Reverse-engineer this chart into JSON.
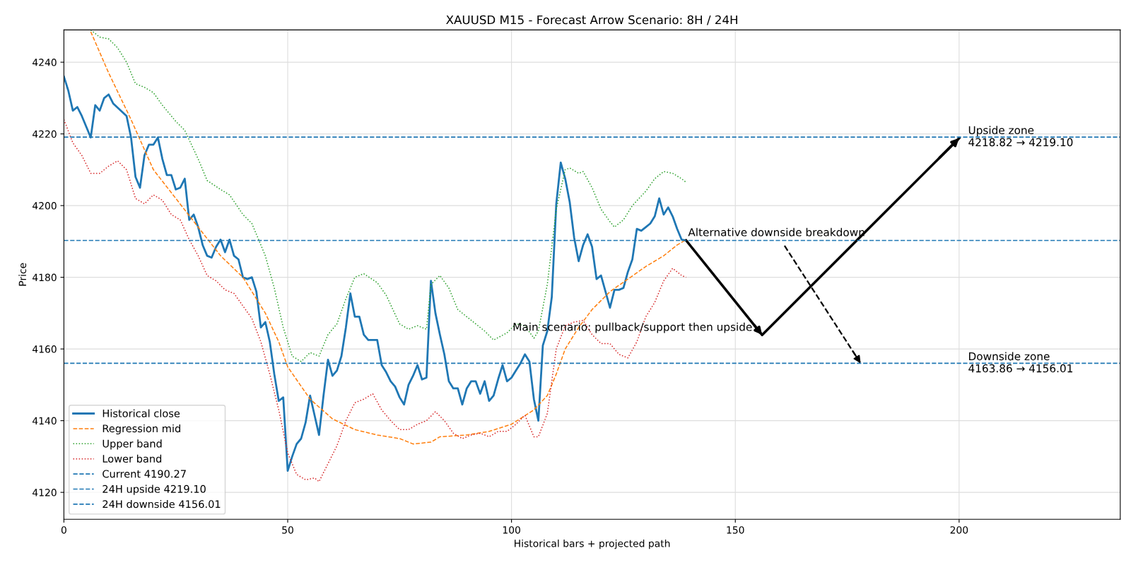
{
  "chart_data": {
    "type": "line",
    "title": "XAUUSD M15 - Forecast Arrow Scenario: 8H / 24H",
    "xlabel": "Historical bars + projected path",
    "ylabel": "Price",
    "xlim": [
      0,
      236
    ],
    "ylim": [
      4112.5,
      4249
    ],
    "xticks": [
      0,
      50,
      100,
      150,
      200
    ],
    "yticks": [
      4120,
      4140,
      4160,
      4180,
      4200,
      4220,
      4240
    ],
    "grid": true,
    "legend": "bottom left",
    "series": [
      {
        "name": "Historical close",
        "color": "#1f77b4",
        "line_style": "solid",
        "x": [
          0,
          1,
          2,
          3,
          4,
          6,
          7,
          8,
          9,
          10,
          11,
          14,
          15,
          16,
          17,
          18,
          19,
          20,
          21,
          22,
          23,
          24,
          25,
          26,
          27,
          28,
          29,
          30,
          31,
          32,
          33,
          34,
          35,
          36,
          37,
          38,
          39,
          40,
          41,
          42,
          43,
          44,
          45,
          46,
          47,
          48,
          49,
          50,
          51,
          52,
          53,
          54,
          55,
          56,
          57,
          58,
          59,
          60,
          61,
          62,
          63,
          64,
          65,
          66,
          67,
          68,
          69,
          70,
          71,
          72,
          73,
          74,
          75,
          76,
          77,
          78,
          79,
          80,
          81,
          82,
          83,
          84,
          85,
          86,
          87,
          88,
          89,
          90,
          91,
          92,
          93,
          94,
          95,
          96,
          97,
          98,
          99,
          100,
          101,
          102,
          103,
          104,
          105,
          106,
          107,
          108,
          109,
          110,
          111,
          112,
          113,
          114,
          115,
          116,
          117,
          118,
          119,
          120,
          121,
          122,
          123,
          124,
          125,
          126,
          127,
          128,
          129,
          130,
          131,
          132,
          133,
          134,
          135,
          136,
          137,
          138,
          139
        ],
        "values": [
          4236,
          4232,
          4226.5,
          4227.5,
          4225,
          4219,
          4228,
          4226.5,
          4230,
          4231,
          4228.5,
          4225,
          4219,
          4208,
          4205,
          4214,
          4217,
          4217,
          4219,
          4213,
          4208.5,
          4208.5,
          4204.5,
          4205,
          4207.5,
          4196,
          4197.5,
          4194,
          4189,
          4186,
          4185.5,
          4188.5,
          4190.5,
          4187,
          4190.5,
          4186,
          4185,
          4180,
          4179.5,
          4180,
          4176,
          4166,
          4167.5,
          4162,
          4153,
          4145.5,
          4146.5,
          4126,
          4130,
          4133.5,
          4135,
          4139.5,
          4147,
          4141.5,
          4136,
          4147,
          4157,
          4152.5,
          4154,
          4158,
          4166,
          4175.5,
          4169,
          4169,
          4164,
          4162.5,
          4162.5,
          4162.5,
          4155.5,
          4153.5,
          4151,
          4149.5,
          4146.5,
          4144.5,
          4150,
          4152.5,
          4155.5,
          4151.5,
          4152,
          4179,
          4170,
          4164,
          4158.5,
          4151,
          4149,
          4149,
          4144.5,
          4149,
          4151,
          4151,
          4147.5,
          4151,
          4145.5,
          4147,
          4151.5,
          4155.5,
          4151,
          4152,
          4154,
          4156,
          4158.5,
          4156.5,
          4146,
          4140,
          4161,
          4165,
          4174.5,
          4200.5,
          4212,
          4207.5,
          4201,
          4191,
          4184.5,
          4189,
          4192,
          4188.5,
          4179.5,
          4180.5,
          4176,
          4171.5,
          4176.5,
          4176.5,
          4177,
          4181.5,
          4185,
          4193.5,
          4193,
          4194,
          4195,
          4197,
          4202,
          4197.5,
          4199.5,
          4197,
          4193.5,
          4190.5,
          4190.3
        ]
      },
      {
        "name": "Regression mid",
        "color": "#ff7f0e",
        "line_style": "dashed",
        "x": [
          6,
          10,
          15,
          20,
          25,
          30,
          35,
          40,
          45,
          48,
          50,
          55,
          60,
          65,
          70,
          75,
          78,
          82,
          84,
          90,
          95,
          100,
          105,
          108,
          110,
          112,
          115,
          118,
          122,
          126,
          130,
          134,
          137,
          139
        ],
        "values": [
          4248.5,
          4237,
          4224,
          4210,
          4202,
          4194,
          4186,
          4180,
          4170,
          4162,
          4155,
          4146,
          4140.5,
          4137.5,
          4136,
          4135,
          4133.5,
          4134,
          4135.5,
          4136,
          4137,
          4139,
          4143,
          4147,
          4153,
          4160,
          4166,
          4171,
          4176,
          4179.5,
          4183,
          4186,
          4189,
          4190.5
        ]
      },
      {
        "name": "Upper band",
        "color": "#2ca02c",
        "line_style": "dotted",
        "x": [
          6,
          8,
          10,
          12,
          14,
          16,
          18,
          20,
          22,
          25,
          27,
          30,
          32,
          35,
          37,
          40,
          42,
          45,
          47,
          49,
          51,
          53,
          55,
          57,
          59,
          61,
          63,
          65,
          67,
          70,
          72,
          75,
          77,
          79,
          81,
          82,
          84,
          86,
          88,
          91,
          94,
          96,
          99,
          101,
          103,
          105,
          106,
          108,
          110,
          112,
          113,
          115,
          116,
          118,
          120,
          122,
          123,
          125,
          127,
          130,
          132,
          134,
          136,
          138,
          139
        ],
        "values": [
          4249,
          4247,
          4246.5,
          4244,
          4240,
          4234,
          4233,
          4231.5,
          4228,
          4223.5,
          4221,
          4213,
          4207,
          4204.5,
          4203,
          4197.5,
          4195,
          4186,
          4177,
          4166,
          4158,
          4156.5,
          4159,
          4158,
          4164,
          4167,
          4174,
          4180,
          4181,
          4178.5,
          4175,
          4167,
          4165.5,
          4166.5,
          4165.5,
          4178,
          4180.5,
          4177,
          4171,
          4168,
          4165,
          4162.5,
          4164.5,
          4167,
          4166.5,
          4163,
          4165,
          4178,
          4199,
          4210,
          4210.5,
          4209,
          4209.5,
          4205,
          4199,
          4195.5,
          4194,
          4196,
          4200,
          4204,
          4207.5,
          4209.5,
          4209,
          4207.5,
          4206.5
        ]
      },
      {
        "name": "Lower band",
        "color": "#d62728",
        "line_style": "dotted",
        "x": [
          0,
          2,
          4,
          6,
          8,
          10,
          12,
          14,
          16,
          18,
          20,
          22,
          24,
          26,
          28,
          30,
          32,
          34,
          36,
          38,
          40,
          42,
          44,
          46,
          48,
          50,
          52,
          54,
          56,
          57,
          59,
          61,
          63,
          65,
          67,
          69,
          71,
          73,
          75,
          77,
          79,
          81,
          83,
          85,
          87,
          89,
          91,
          93,
          95,
          97,
          99,
          101,
          103,
          105,
          106,
          108,
          110,
          112,
          114,
          116,
          118,
          120,
          122,
          124,
          126,
          128,
          130,
          132,
          134,
          136,
          138,
          139
        ],
        "values": [
          4224,
          4217.5,
          4214,
          4209,
          4209,
          4211,
          4212.5,
          4210,
          4202,
          4200.5,
          4203,
          4201.5,
          4197.5,
          4196,
          4190.5,
          4186,
          4180.5,
          4179,
          4176.5,
          4175.5,
          4172,
          4168.5,
          4162,
          4153,
          4143,
          4131,
          4125,
          4123.5,
          4124,
          4123,
          4128,
          4133,
          4140,
          4145,
          4146,
          4147.5,
          4143,
          4140,
          4137.5,
          4137.5,
          4139,
          4140,
          4142.5,
          4140,
          4136.5,
          4135,
          4136,
          4136.5,
          4135.5,
          4137,
          4137,
          4139,
          4141.5,
          4135.5,
          4135.5,
          4142,
          4160,
          4166.5,
          4167.5,
          4168,
          4164,
          4161.5,
          4161.5,
          4158.5,
          4157.5,
          4162,
          4169,
          4173,
          4179,
          4182.5,
          4180.5,
          4180
        ]
      },
      {
        "color": "#000000",
        "line_style": "solid",
        "x": [
          139,
          156,
          200
        ],
        "values": [
          4190.3,
          4163.9,
          4218.8
        ]
      },
      {
        "color": "#000000",
        "line_style": "dashed",
        "x": [
          161,
          178
        ],
        "values": [
          4188.8,
          4156
        ]
      }
    ],
    "ref_lines": [
      {
        "axis": "y",
        "value": 4190.27,
        "label": "Current 4190.27",
        "color": "#1f77b4",
        "line_style": "dashed"
      },
      {
        "axis": "y",
        "value": 4219.1,
        "label": "24H upside 4219.10",
        "color": "#1f77b4",
        "line_style": "dashed"
      },
      {
        "axis": "y",
        "value": 4156.01,
        "label": "24H downside 4156.01",
        "color": "#1f77b4",
        "line_style": "dashed"
      }
    ],
    "annotations": [
      {
        "text": "Alternative downside breakdown",
        "x": 139,
        "y": 4190.3
      },
      {
        "text": "Main scenario: pullback/support then upside",
        "x": 156,
        "y": 4163.9
      },
      {
        "text": "Upside zone\n4218.82 → 4219.10",
        "x": 202,
        "y": 4219.1
      },
      {
        "text": "Downside zone\n4163.86 → 4156.01",
        "x": 202,
        "y": 4156.01
      }
    ]
  }
}
